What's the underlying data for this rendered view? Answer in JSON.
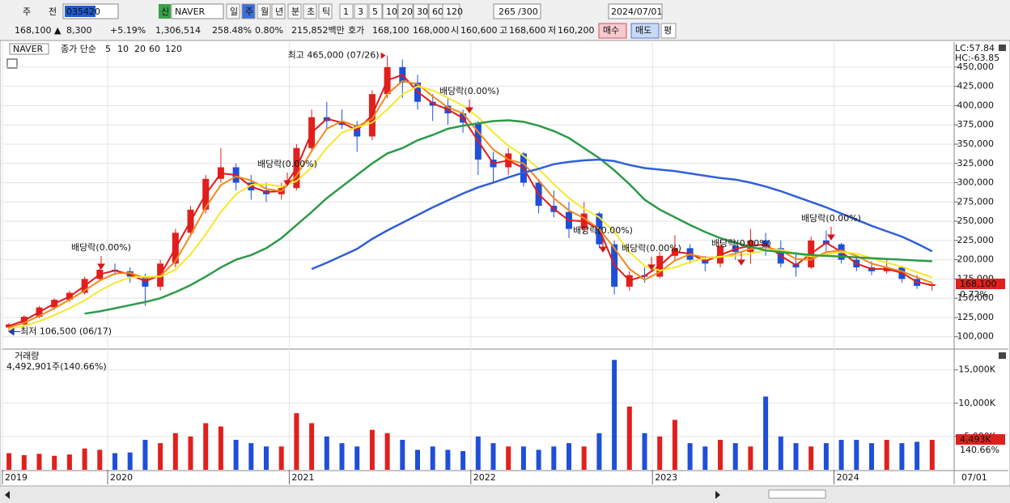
{
  "toolbar": {
    "row1": [
      "주",
      "전",
      "035420",
      "신",
      "NAVER",
      "일",
      "주",
      "월",
      "년",
      "분",
      "초",
      "틱",
      "1",
      "3",
      "5",
      "10",
      "20",
      "30",
      "60",
      "120",
      "265",
      "/300",
      "2024/07/01"
    ],
    "row2": [
      "168,100 ▲",
      "8,300",
      "+5.19%",
      "1,306,514",
      "258.48%",
      "0.80%",
      "215,852백만",
      "호가",
      "168,100",
      "168,000",
      "시",
      "160,600",
      "고",
      "168,600",
      "저",
      "160,200",
      "매수",
      "매도",
      "평"
    ]
  },
  "chart_data": {
    "type": "candlestick",
    "symbol": "NAVER",
    "ma_label": "종가 단순",
    "lc": "LC:57.84",
    "hc": "HC:-63.85",
    "categories": [
      "2019",
      null,
      null,
      null,
      null,
      null,
      null,
      "2020",
      null,
      null,
      null,
      null,
      null,
      null,
      null,
      null,
      null,
      null,
      null,
      "2021",
      null,
      null,
      null,
      null,
      null,
      null,
      null,
      null,
      null,
      null,
      null,
      "2022",
      null,
      null,
      null,
      null,
      null,
      null,
      null,
      null,
      null,
      null,
      null,
      "2023",
      null,
      null,
      null,
      null,
      null,
      null,
      null,
      null,
      null,
      null,
      null,
      "2024",
      null,
      null,
      null,
      null,
      null,
      null
    ],
    "x_end_label": "07/01",
    "open": [
      112000,
      116000,
      126000,
      138000,
      148000,
      157000,
      175000,
      187000,
      185000,
      178000,
      165000,
      195000,
      235000,
      265000,
      305000,
      320000,
      300000,
      290000,
      285000,
      293000,
      345000,
      385000,
      380000,
      375000,
      360000,
      415000,
      450000,
      430000,
      405000,
      400000,
      390000,
      378000,
      330000,
      320000,
      338000,
      300000,
      270000,
      262000,
      240000,
      260000,
      220000,
      165000,
      180000,
      178000,
      205000,
      215000,
      200000,
      195000,
      218000,
      210000,
      225000,
      215000,
      195000,
      190000,
      225000,
      220000,
      200000,
      190000,
      185000,
      190000,
      175000,
      166000
    ],
    "high": [
      118000,
      128000,
      140000,
      150000,
      160000,
      178000,
      190000,
      195000,
      190000,
      182000,
      200000,
      240000,
      270000,
      310000,
      345000,
      325000,
      310000,
      300000,
      300000,
      350000,
      395000,
      405000,
      395000,
      380000,
      420000,
      465000,
      460000,
      440000,
      415000,
      410000,
      395000,
      380000,
      340000,
      345000,
      340000,
      305000,
      290000,
      275000,
      275000,
      262000,
      225000,
      185000,
      190000,
      210000,
      232000,
      220000,
      205000,
      225000,
      225000,
      240000,
      235000,
      225000,
      210000,
      230000,
      238000,
      222000,
      205000,
      198000,
      200000,
      192000,
      180000,
      170000
    ],
    "low": [
      106500,
      114000,
      124000,
      135000,
      145000,
      155000,
      172000,
      180000,
      170000,
      140000,
      160000,
      190000,
      230000,
      260000,
      300000,
      290000,
      278000,
      275000,
      278000,
      290000,
      340000,
      370000,
      370000,
      340000,
      355000,
      410000,
      410000,
      395000,
      380000,
      375000,
      365000,
      310000,
      300000,
      310000,
      295000,
      260000,
      255000,
      228000,
      235000,
      215000,
      155000,
      160000,
      170000,
      176000,
      200000,
      195000,
      185000,
      190000,
      200000,
      195000,
      205000,
      190000,
      178000,
      188000,
      210000,
      195000,
      185000,
      180000,
      182000,
      170000,
      162000,
      160000
    ],
    "close": [
      116000,
      126000,
      138000,
      148000,
      157000,
      175000,
      187000,
      185000,
      178000,
      165000,
      195000,
      235000,
      265000,
      305000,
      320000,
      300000,
      290000,
      285000,
      293000,
      345000,
      385000,
      380000,
      375000,
      360000,
      415000,
      450000,
      430000,
      405000,
      400000,
      390000,
      378000,
      330000,
      320000,
      338000,
      300000,
      270000,
      262000,
      240000,
      260000,
      220000,
      165000,
      180000,
      178000,
      205000,
      215000,
      200000,
      195000,
      218000,
      210000,
      225000,
      215000,
      195000,
      190000,
      225000,
      220000,
      200000,
      190000,
      185000,
      190000,
      175000,
      166000,
      168100
    ],
    "up_color": "#e0201d",
    "down_color": "#1f4fd8",
    "ylim": [
      85000,
      482500
    ],
    "yticks": [
      {
        "value": 100000,
        "label": "100,000"
      },
      {
        "value": 125000,
        "label": "125,000"
      },
      {
        "value": 150000,
        "label": "150,000"
      },
      {
        "value": 175000,
        "label": "175,000"
      },
      {
        "value": 200000,
        "label": "200,000"
      },
      {
        "value": 225000,
        "label": "225,000"
      },
      {
        "value": 250000,
        "label": "250,000"
      },
      {
        "value": 275000,
        "label": "275,000"
      },
      {
        "value": 300000,
        "label": "300,000"
      },
      {
        "value": 325000,
        "label": "325,000"
      },
      {
        "value": 350000,
        "label": "350,000"
      },
      {
        "value": 375000,
        "label": "375,000"
      },
      {
        "value": 400000,
        "label": "400,000"
      },
      {
        "value": 425000,
        "label": "425,000"
      },
      {
        "value": 450000,
        "label": "450,000"
      }
    ],
    "grid": true,
    "series": [
      {
        "name": "5",
        "color": "#e31a1c",
        "values": [
          114000,
          121000,
          132000,
          143000,
          152000,
          166000,
          181000,
          186000,
          181000,
          172000,
          180000,
          215000,
          250000,
          285000,
          312000,
          310000,
          295000,
          288000,
          289000,
          319000,
          365000,
          383000,
          378000,
          368000,
          388000,
          433000,
          440000,
          418000,
          403000,
          395000,
          384000,
          354000,
          325000,
          329000,
          319000,
          285000,
          266000,
          251000,
          250000,
          240000,
          193000,
          173000,
          179000,
          192000,
          210000,
          208000,
          198000,
          206000,
          214000,
          218000,
          220000,
          205000,
          193000,
          208000,
          222000,
          210000,
          195000,
          188000,
          188000,
          183000,
          171000,
          167000
        ]
      },
      {
        "name": "10",
        "color": "#f08a1c",
        "values": [
          112000,
          118000,
          127000,
          137000,
          148000,
          160000,
          173000,
          182000,
          183000,
          176000,
          179000,
          198000,
          232000,
          268000,
          297000,
          308000,
          303000,
          292000,
          289000,
          309000,
          341000,
          370000,
          380000,
          373000,
          383000,
          415000,
          432000,
          428000,
          412000,
          398000,
          390000,
          366000,
          343000,
          330000,
          325000,
          303000,
          280000,
          264000,
          254000,
          240000,
          215000,
          188000,
          174000,
          184000,
          199000,
          207000,
          203000,
          203000,
          208000,
          214000,
          216000,
          212000,
          201000,
          200000,
          210000,
          212000,
          205000,
          195000,
          190000,
          185000,
          177000,
          170000
        ]
      },
      {
        "name": "20",
        "color": "#f5e82a",
        "values": [
          110000,
          114000,
          120000,
          128000,
          137000,
          147000,
          160000,
          170000,
          177000,
          178000,
          178000,
          187000,
          207000,
          233000,
          262000,
          285000,
          297000,
          298000,
          295000,
          302000,
          320000,
          345000,
          365000,
          372000,
          378000,
          395000,
          415000,
          425000,
          420000,
          410000,
          400000,
          385000,
          365000,
          348000,
          335000,
          318000,
          298000,
          280000,
          266000,
          255000,
          236000,
          210000,
          192000,
          186000,
          190000,
          197000,
          202000,
          204000,
          205000,
          208000,
          212000,
          213000,
          208000,
          204000,
          207000,
          210000,
          208000,
          202000,
          196000,
          191000,
          184000,
          177000
        ]
      },
      {
        "name": "60",
        "color": "#2e9a4a",
        "values": [
          null,
          null,
          null,
          null,
          null,
          130000,
          133000,
          137000,
          141000,
          145000,
          150000,
          158000,
          167000,
          178000,
          190000,
          200000,
          206000,
          215000,
          228000,
          245000,
          262000,
          280000,
          295000,
          310000,
          325000,
          338000,
          345000,
          355000,
          362000,
          370000,
          374000,
          377000,
          380000,
          381000,
          379000,
          374000,
          367000,
          358000,
          345000,
          332000,
          316000,
          298000,
          278000,
          265000,
          255000,
          245000,
          236000,
          228000,
          222000,
          217000,
          212000,
          210000,
          208000,
          206000,
          205000,
          204000,
          203000,
          202000,
          201000,
          200000,
          199000,
          198000
        ]
      },
      {
        "name": "120",
        "color": "#2f5fd8",
        "values": [
          null,
          null,
          null,
          null,
          null,
          null,
          null,
          null,
          null,
          null,
          null,
          null,
          null,
          null,
          null,
          null,
          null,
          null,
          null,
          null,
          188000,
          196000,
          205000,
          214000,
          227000,
          238000,
          248000,
          258000,
          268000,
          277000,
          286000,
          294000,
          300000,
          307000,
          313000,
          318000,
          324000,
          327000,
          329000,
          330000,
          328000,
          323000,
          319000,
          317000,
          315000,
          312000,
          309000,
          306000,
          304000,
          300000,
          295000,
          289000,
          282000,
          275000,
          268000,
          260000,
          252000,
          244000,
          237000,
          230000,
          221000,
          211000
        ]
      }
    ],
    "legend_colors": [
      "#e31a1c",
      "#f08a1c",
      "#d8c800",
      "#2e9a4a",
      "#3a8fb7"
    ],
    "annotations": {
      "high_label": "최고 465,000 (07/26)",
      "low_label": "최저 106,500 (06/17)",
      "dividend": [
        "배당락(0.00%)",
        "배당락(0.00%)",
        "배당락(0.00%)",
        "배당락(0.00%)",
        "배당락(0.00%)",
        "배당락(0.00%)",
        "배당락(0.00%)"
      ]
    },
    "price_tag": "168,100",
    "price_tag_pct": "0.72%",
    "volume": {
      "title": "거래량",
      "summary": "4,492,901주(140.66%)",
      "values": [
        2500,
        2200,
        2400,
        2100,
        2300,
        3200,
        3000,
        2500,
        2600,
        4500,
        4000,
        5500,
        5000,
        7000,
        6500,
        4500,
        4000,
        3500,
        3500,
        8500,
        7000,
        5000,
        4000,
        3500,
        6000,
        5500,
        4500,
        3000,
        3500,
        3000,
        2800,
        5000,
        4000,
        3500,
        3500,
        3000,
        3500,
        4000,
        3500,
        5500,
        16500,
        9500,
        5500,
        5000,
        7500,
        4000,
        3500,
        4500,
        4000,
        3500,
        11000,
        5000,
        4000,
        3500,
        4000,
        4500,
        4500,
        4000,
        4500,
        4000,
        4200,
        4493
      ],
      "ylim": [
        0,
        18000
      ],
      "yticks": [
        {
          "value": 5000,
          "label": "5,000K"
        },
        {
          "value": 10000,
          "label": "10,000K"
        },
        {
          "value": 15000,
          "label": "15,000K"
        }
      ],
      "tag": "4,493K",
      "tag_pct": "140.66%"
    }
  }
}
